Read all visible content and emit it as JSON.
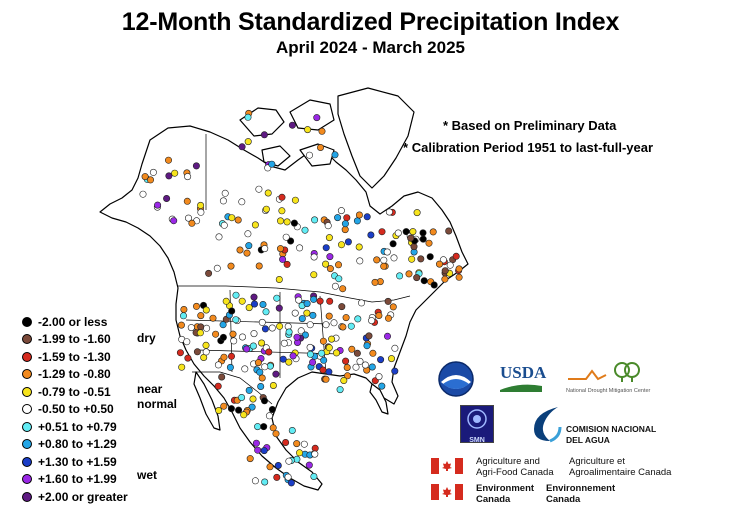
{
  "header": {
    "title": "12-Month Standardized Precipitation Index",
    "subtitle": "April 2024 - March 2025"
  },
  "notes": {
    "preliminary": "* Based on Preliminary Data",
    "calibration": "** Calibration Period 1951 to last-full-year"
  },
  "legend": {
    "items": [
      {
        "label": "-2.00 or less",
        "color": "#000000"
      },
      {
        "label": "-1.99 to -1.60",
        "color": "#7b4a3a"
      },
      {
        "label": "-1.59 to -1.30",
        "color": "#d52a1e"
      },
      {
        "label": "-1.29 to -0.80",
        "color": "#f28a1e"
      },
      {
        "label": "-0.79 to -0.51",
        "color": "#f7e41c"
      },
      {
        "label": "-0.50 to +0.50",
        "color": "#ffffff"
      },
      {
        "label": "+0.51 to +0.79",
        "color": "#62ecf4"
      },
      {
        "label": "+0.80 to +1.29",
        "color": "#23a5e6"
      },
      {
        "label": "+1.30 to +1.59",
        "color": "#1b3ec7"
      },
      {
        "label": "+1.60 to +1.99",
        "color": "#9a28e6"
      },
      {
        "label": "+2.00 or greater",
        "color": "#5e1a82"
      }
    ],
    "groups": {
      "dry": "dry",
      "normal": "near\nnormal",
      "wet": "wet"
    }
  },
  "agencies": {
    "noaa_icon": "noaa-logo",
    "usda": "USDA",
    "ndmc": "National Drought Mitigation Center",
    "smn": "SMN",
    "conagua_1": "COMISION NACIONAL",
    "conagua_2": "DEL AGUA",
    "aafc_en_1": "Agriculture and",
    "aafc_en_2": "Agri-Food Canada",
    "aafc_fr_1": "Agriculture et",
    "aafc_fr_2": "Agroalimentaire Canada",
    "ec_en_1": "Environment",
    "ec_en_2": "Canada",
    "ec_fr_1": "Environnement",
    "ec_fr_2": "Canada",
    "flag_colors": {
      "red": "#d52b1e",
      "white": "#ffffff"
    }
  }
}
